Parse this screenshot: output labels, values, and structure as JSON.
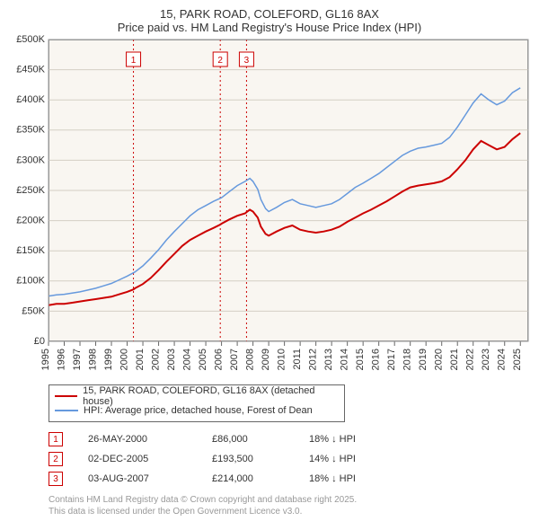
{
  "titles": {
    "line1": "15, PARK ROAD, COLEFORD, GL16 8AX",
    "line2": "Price paid vs. HM Land Registry's House Price Index (HPI)"
  },
  "chart": {
    "type": "line",
    "plot_bg": "#f9f6f1",
    "border_color": "#999999",
    "x_years": [
      1995,
      1996,
      1997,
      1998,
      1999,
      2000,
      2001,
      2002,
      2003,
      2004,
      2005,
      2006,
      2007,
      2008,
      2009,
      2010,
      2011,
      2012,
      2013,
      2014,
      2015,
      2016,
      2017,
      2018,
      2019,
      2020,
      2021,
      2022,
      2023,
      2024,
      2025
    ],
    "xlim": [
      1995,
      2025.5
    ],
    "ylim": [
      0,
      500000
    ],
    "y_ticks": [
      0,
      50000,
      100000,
      150000,
      200000,
      250000,
      300000,
      350000,
      400000,
      450000,
      500000
    ],
    "y_tick_labels": [
      "£0",
      "£50K",
      "£100K",
      "£150K",
      "£200K",
      "£250K",
      "£300K",
      "£350K",
      "£400K",
      "£450K",
      "£500K"
    ],
    "gridline_color": "#d4cfc4",
    "marker_line_color": "#cc0000",
    "marker_line_dash": "2,3",
    "series_price": {
      "label": "15, PARK ROAD, COLEFORD, GL16 8AX (detached house)",
      "color": "#cc0000",
      "width": 2,
      "points": [
        [
          1995.0,
          60000
        ],
        [
          1995.5,
          62000
        ],
        [
          1996.0,
          62000
        ],
        [
          1996.5,
          64000
        ],
        [
          1997.0,
          66000
        ],
        [
          1997.5,
          68000
        ],
        [
          1998.0,
          70000
        ],
        [
          1998.5,
          72000
        ],
        [
          1999.0,
          74000
        ],
        [
          1999.5,
          78000
        ],
        [
          2000.0,
          82000
        ],
        [
          2000.4,
          86000
        ],
        [
          2000.5,
          88000
        ],
        [
          2001.0,
          95000
        ],
        [
          2001.5,
          105000
        ],
        [
          2002.0,
          118000
        ],
        [
          2002.5,
          132000
        ],
        [
          2003.0,
          145000
        ],
        [
          2003.5,
          158000
        ],
        [
          2004.0,
          168000
        ],
        [
          2004.5,
          175000
        ],
        [
          2005.0,
          182000
        ],
        [
          2005.5,
          188000
        ],
        [
          2005.92,
          193500
        ],
        [
          2006.0,
          195000
        ],
        [
          2006.5,
          202000
        ],
        [
          2007.0,
          208000
        ],
        [
          2007.5,
          212000
        ],
        [
          2007.59,
          214000
        ],
        [
          2007.8,
          218000
        ],
        [
          2008.0,
          215000
        ],
        [
          2008.3,
          205000
        ],
        [
          2008.5,
          190000
        ],
        [
          2008.8,
          178000
        ],
        [
          2009.0,
          175000
        ],
        [
          2009.5,
          182000
        ],
        [
          2010.0,
          188000
        ],
        [
          2010.5,
          192000
        ],
        [
          2011.0,
          185000
        ],
        [
          2011.5,
          182000
        ],
        [
          2012.0,
          180000
        ],
        [
          2012.5,
          182000
        ],
        [
          2013.0,
          185000
        ],
        [
          2013.5,
          190000
        ],
        [
          2014.0,
          198000
        ],
        [
          2014.5,
          205000
        ],
        [
          2015.0,
          212000
        ],
        [
          2015.5,
          218000
        ],
        [
          2016.0,
          225000
        ],
        [
          2016.5,
          232000
        ],
        [
          2017.0,
          240000
        ],
        [
          2017.5,
          248000
        ],
        [
          2018.0,
          255000
        ],
        [
          2018.5,
          258000
        ],
        [
          2019.0,
          260000
        ],
        [
          2019.5,
          262000
        ],
        [
          2020.0,
          265000
        ],
        [
          2020.5,
          272000
        ],
        [
          2021.0,
          285000
        ],
        [
          2021.5,
          300000
        ],
        [
          2022.0,
          318000
        ],
        [
          2022.5,
          332000
        ],
        [
          2023.0,
          325000
        ],
        [
          2023.5,
          318000
        ],
        [
          2024.0,
          322000
        ],
        [
          2024.5,
          335000
        ],
        [
          2025.0,
          345000
        ]
      ]
    },
    "series_hpi": {
      "label": "HPI: Average price, detached house, Forest of Dean",
      "color": "#6699dd",
      "width": 1.5,
      "points": [
        [
          1995.0,
          75000
        ],
        [
          1995.5,
          77000
        ],
        [
          1996.0,
          78000
        ],
        [
          1996.5,
          80000
        ],
        [
          1997.0,
          82000
        ],
        [
          1997.5,
          85000
        ],
        [
          1998.0,
          88000
        ],
        [
          1998.5,
          92000
        ],
        [
          1999.0,
          96000
        ],
        [
          1999.5,
          102000
        ],
        [
          2000.0,
          108000
        ],
        [
          2000.5,
          115000
        ],
        [
          2001.0,
          125000
        ],
        [
          2001.5,
          138000
        ],
        [
          2002.0,
          152000
        ],
        [
          2002.5,
          168000
        ],
        [
          2003.0,
          182000
        ],
        [
          2003.5,
          195000
        ],
        [
          2004.0,
          208000
        ],
        [
          2004.5,
          218000
        ],
        [
          2005.0,
          225000
        ],
        [
          2005.5,
          232000
        ],
        [
          2006.0,
          238000
        ],
        [
          2006.5,
          248000
        ],
        [
          2007.0,
          258000
        ],
        [
          2007.5,
          265000
        ],
        [
          2007.8,
          270000
        ],
        [
          2008.0,
          265000
        ],
        [
          2008.3,
          252000
        ],
        [
          2008.5,
          235000
        ],
        [
          2008.8,
          220000
        ],
        [
          2009.0,
          215000
        ],
        [
          2009.5,
          222000
        ],
        [
          2010.0,
          230000
        ],
        [
          2010.5,
          235000
        ],
        [
          2011.0,
          228000
        ],
        [
          2011.5,
          225000
        ],
        [
          2012.0,
          222000
        ],
        [
          2012.5,
          225000
        ],
        [
          2013.0,
          228000
        ],
        [
          2013.5,
          235000
        ],
        [
          2014.0,
          245000
        ],
        [
          2014.5,
          255000
        ],
        [
          2015.0,
          262000
        ],
        [
          2015.5,
          270000
        ],
        [
          2016.0,
          278000
        ],
        [
          2016.5,
          288000
        ],
        [
          2017.0,
          298000
        ],
        [
          2017.5,
          308000
        ],
        [
          2018.0,
          315000
        ],
        [
          2018.5,
          320000
        ],
        [
          2019.0,
          322000
        ],
        [
          2019.5,
          325000
        ],
        [
          2020.0,
          328000
        ],
        [
          2020.5,
          338000
        ],
        [
          2021.0,
          355000
        ],
        [
          2021.5,
          375000
        ],
        [
          2022.0,
          395000
        ],
        [
          2022.5,
          410000
        ],
        [
          2023.0,
          400000
        ],
        [
          2023.5,
          392000
        ],
        [
          2024.0,
          398000
        ],
        [
          2024.5,
          412000
        ],
        [
          2025.0,
          420000
        ]
      ]
    },
    "sale_markers": [
      {
        "n": "1",
        "x": 2000.4
      },
      {
        "n": "2",
        "x": 2005.92
      },
      {
        "n": "3",
        "x": 2007.59
      }
    ],
    "label_fontsize": 11
  },
  "legend": {
    "border_color": "#666666"
  },
  "markers_table": [
    {
      "n": "1",
      "date": "26-MAY-2000",
      "price": "£86,000",
      "hpi": "18% ↓ HPI"
    },
    {
      "n": "2",
      "date": "02-DEC-2005",
      "price": "£193,500",
      "hpi": "14% ↓ HPI"
    },
    {
      "n": "3",
      "date": "03-AUG-2007",
      "price": "£214,000",
      "hpi": "18% ↓ HPI"
    }
  ],
  "footnote": {
    "line1": "Contains HM Land Registry data © Crown copyright and database right 2025.",
    "line2": "This data is licensed under the Open Government Licence v3.0."
  }
}
